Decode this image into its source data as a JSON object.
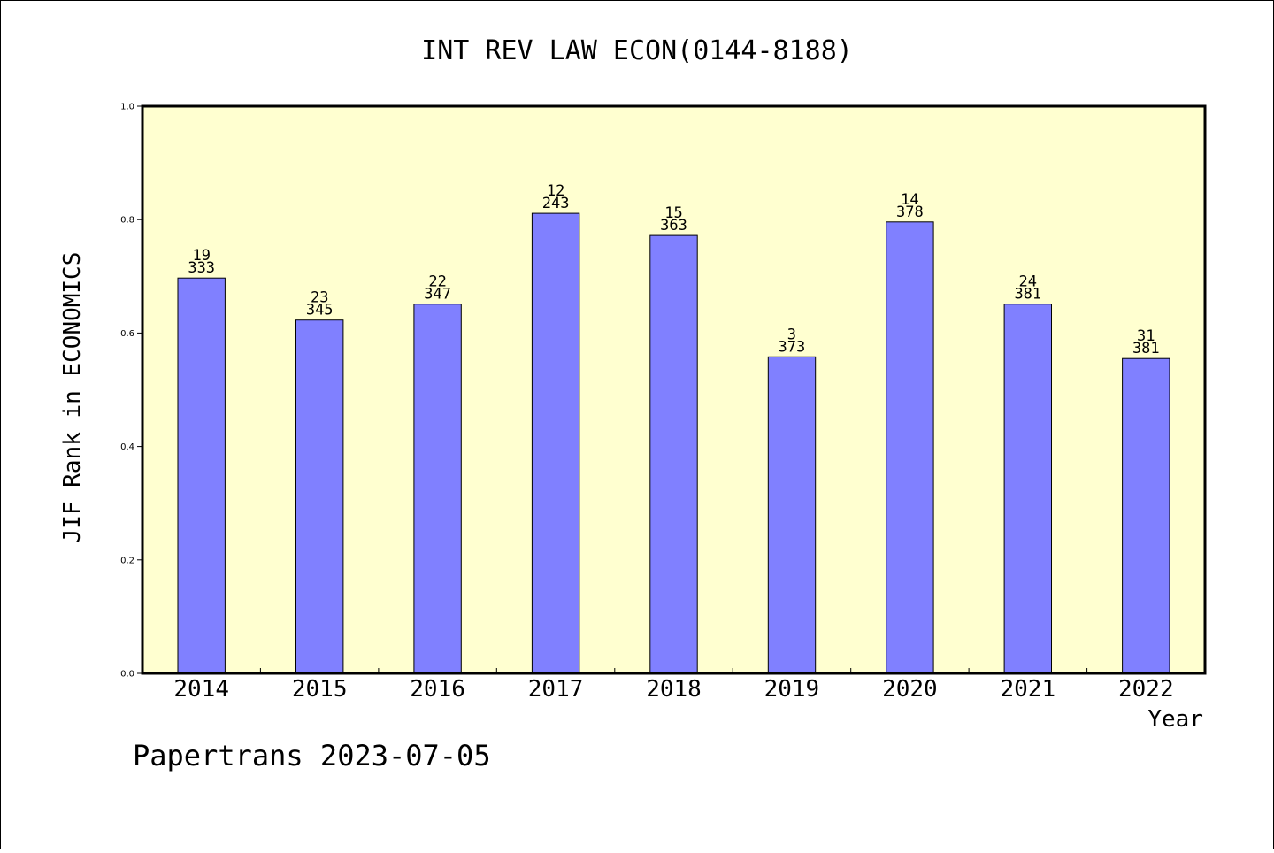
{
  "chart_data": {
    "type": "bar",
    "title": "INT REV LAW ECON(0144-8188)",
    "xlabel": "Year",
    "ylabel": "JIF Rank in ECONOMICS",
    "ylim": [
      0.0,
      1.0
    ],
    "yticks": [
      "0.0",
      "0.2",
      "0.4",
      "0.6",
      "0.8",
      "1.0"
    ],
    "grid": false,
    "categories": [
      "2014",
      "2015",
      "2016",
      "2017",
      "2018",
      "2019",
      "2020",
      "2021",
      "2022"
    ],
    "values": [
      0.697,
      0.623,
      0.651,
      0.811,
      0.772,
      0.558,
      0.796,
      0.651,
      0.555
    ],
    "rank": [
      "19",
      "23",
      "22",
      "12",
      "15",
      "3",
      "14",
      "24",
      "31"
    ],
    "total": [
      "333",
      "345",
      "347",
      "243",
      "363",
      "373",
      "378",
      "381",
      "381"
    ],
    "colors": {
      "bar": "#8080ff",
      "plot_background": "#ffffd0",
      "axis": "#000000"
    }
  },
  "footer": "Papertrans 2023-07-05"
}
